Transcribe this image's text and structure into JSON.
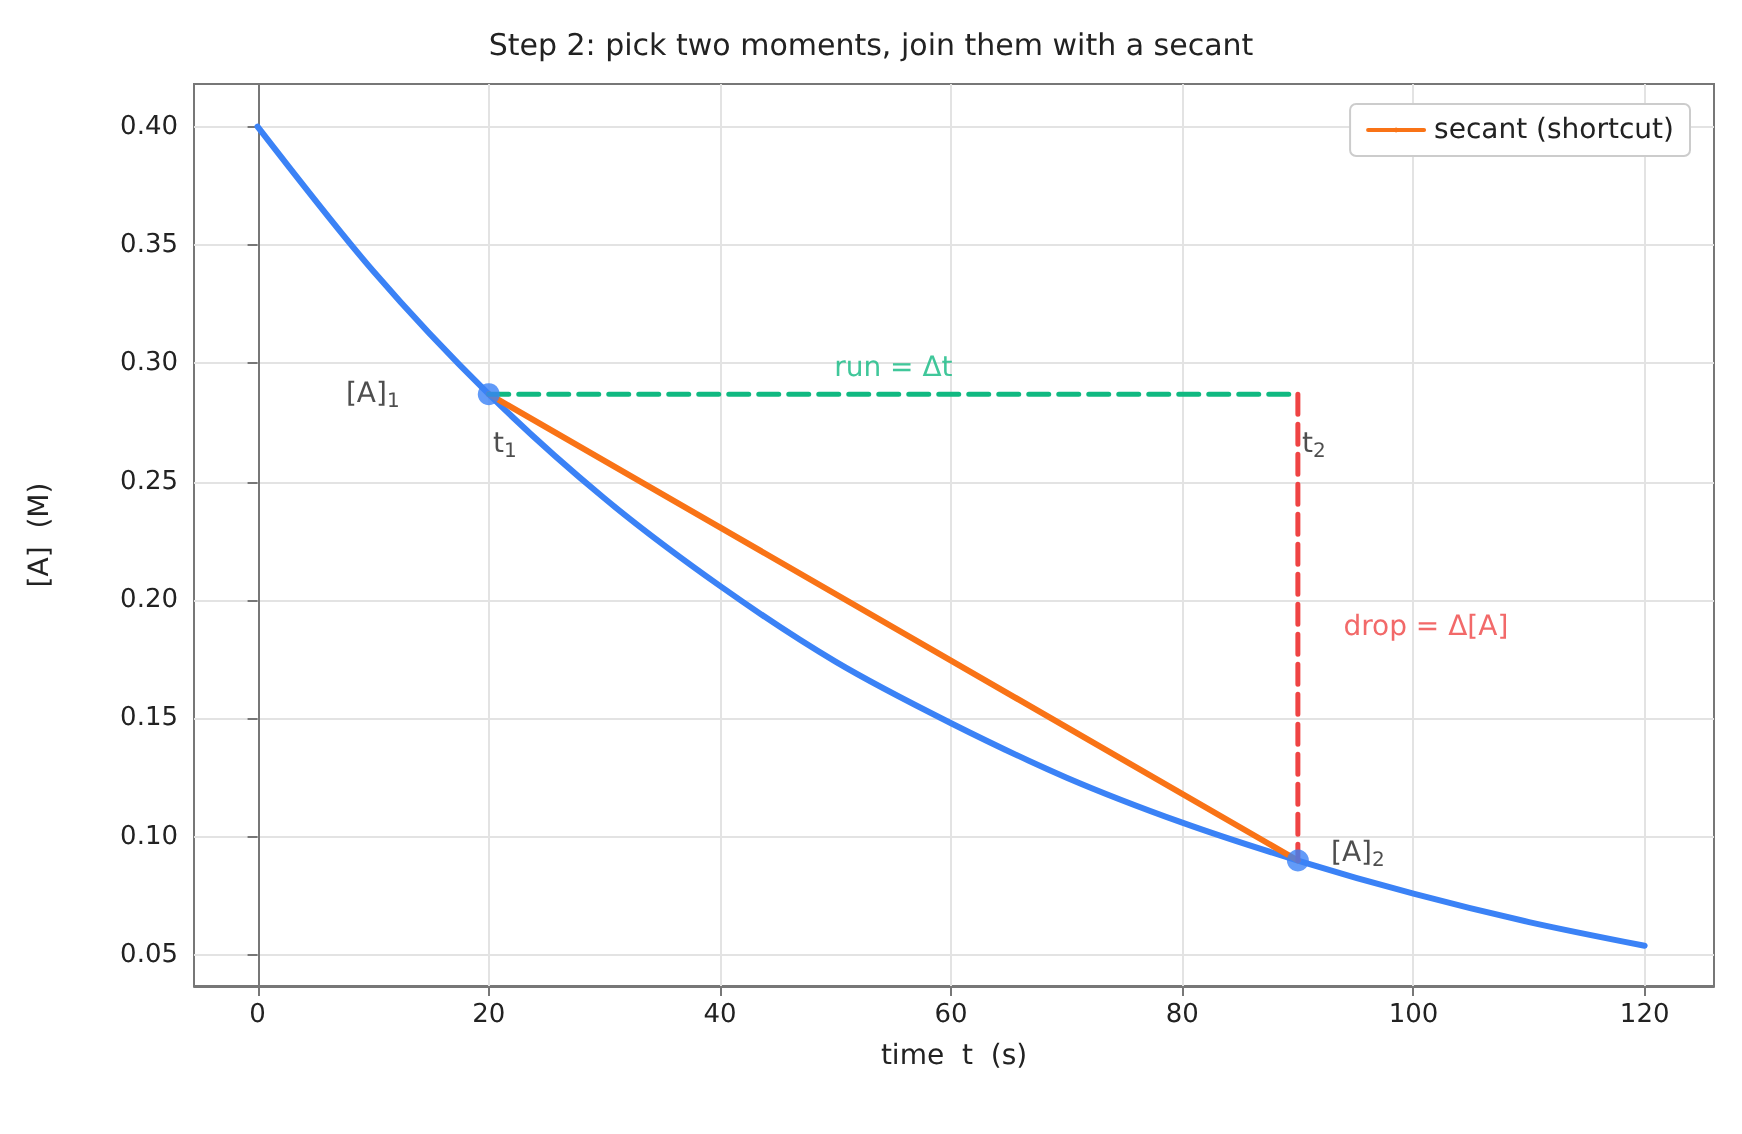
{
  "chart_data": {
    "type": "line",
    "title": "Step 2: pick two moments, join them with a secant",
    "xlabel": "time  t  (s)",
    "ylabel": "[A]  (M)",
    "xlim": [
      -5.5,
      126
    ],
    "xticks": [
      0,
      20,
      40,
      60,
      80,
      100,
      120
    ],
    "ylim": [
      0.037,
      0.418
    ],
    "yticks": [
      {
        "value": 0.05,
        "label": "0.05"
      },
      {
        "value": 0.1,
        "label": "0.10"
      },
      {
        "value": 0.15,
        "label": "0.15"
      },
      {
        "value": 0.2,
        "label": "0.20"
      },
      {
        "value": 0.25,
        "label": "0.25"
      },
      {
        "value": 0.3,
        "label": "0.30"
      },
      {
        "value": 0.35,
        "label": "0.35"
      },
      {
        "value": 0.4,
        "label": "0.40"
      }
    ],
    "grid": true,
    "legend": "top right",
    "marker": "none",
    "series": [
      {
        "color": "#3b82f6",
        "x": [
          0,
          10,
          20,
          30,
          40,
          50,
          60,
          70,
          80,
          90,
          100,
          110,
          120
        ],
        "values": [
          0.4,
          0.339,
          0.287,
          0.243,
          0.206,
          0.174,
          0.148,
          0.125,
          0.106,
          0.09,
          0.076,
          0.064,
          0.054
        ]
      },
      {
        "name": "secant (shortcut)",
        "color": "#f97316",
        "x": [
          20,
          90
        ],
        "values": [
          0.287,
          0.09
        ]
      },
      {
        "color": "#10b981",
        "line_style": "dashed",
        "x": [
          20,
          90
        ],
        "values": [
          0.287,
          0.287
        ]
      },
      {
        "color": "#ef4444",
        "line_style": "dashed",
        "x": [
          90,
          90
        ],
        "values": [
          0.287,
          0.09
        ]
      },
      {
        "type": "scatter",
        "color": "#3b82f6",
        "marker": "circle",
        "x": [
          20,
          90
        ],
        "values": [
          0.287,
          0.09
        ]
      }
    ],
    "annotations": [
      "[A]$_{1}$",
      "t$_{1}$",
      "run = Δt",
      "t$_{2}$",
      "drop = Δ[A]",
      "[A]$_{2}$"
    ]
  }
}
